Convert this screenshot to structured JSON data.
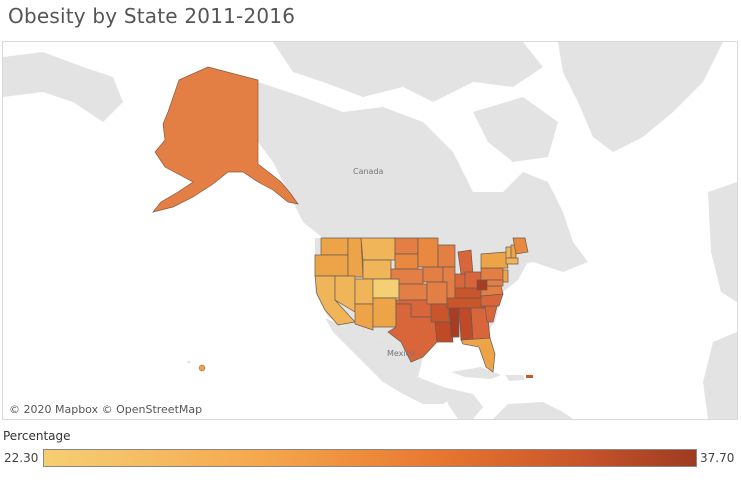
{
  "title": "Obesity by State 2011-2016",
  "map": {
    "labels": {
      "canada": "Canada",
      "mexico": "Mexico"
    },
    "attribution": "© 2020 Mapbox © OpenStreetMap",
    "land_color": "#e3e3e3",
    "water_color": "#ffffff",
    "alaska_color": "#e37e45",
    "hawaii_color": "#eda448"
  },
  "legend": {
    "title": "Percentage",
    "min": "22.30",
    "max": "37.70",
    "color_low": "#f5cf73",
    "color_high": "#9e3b22"
  }
}
